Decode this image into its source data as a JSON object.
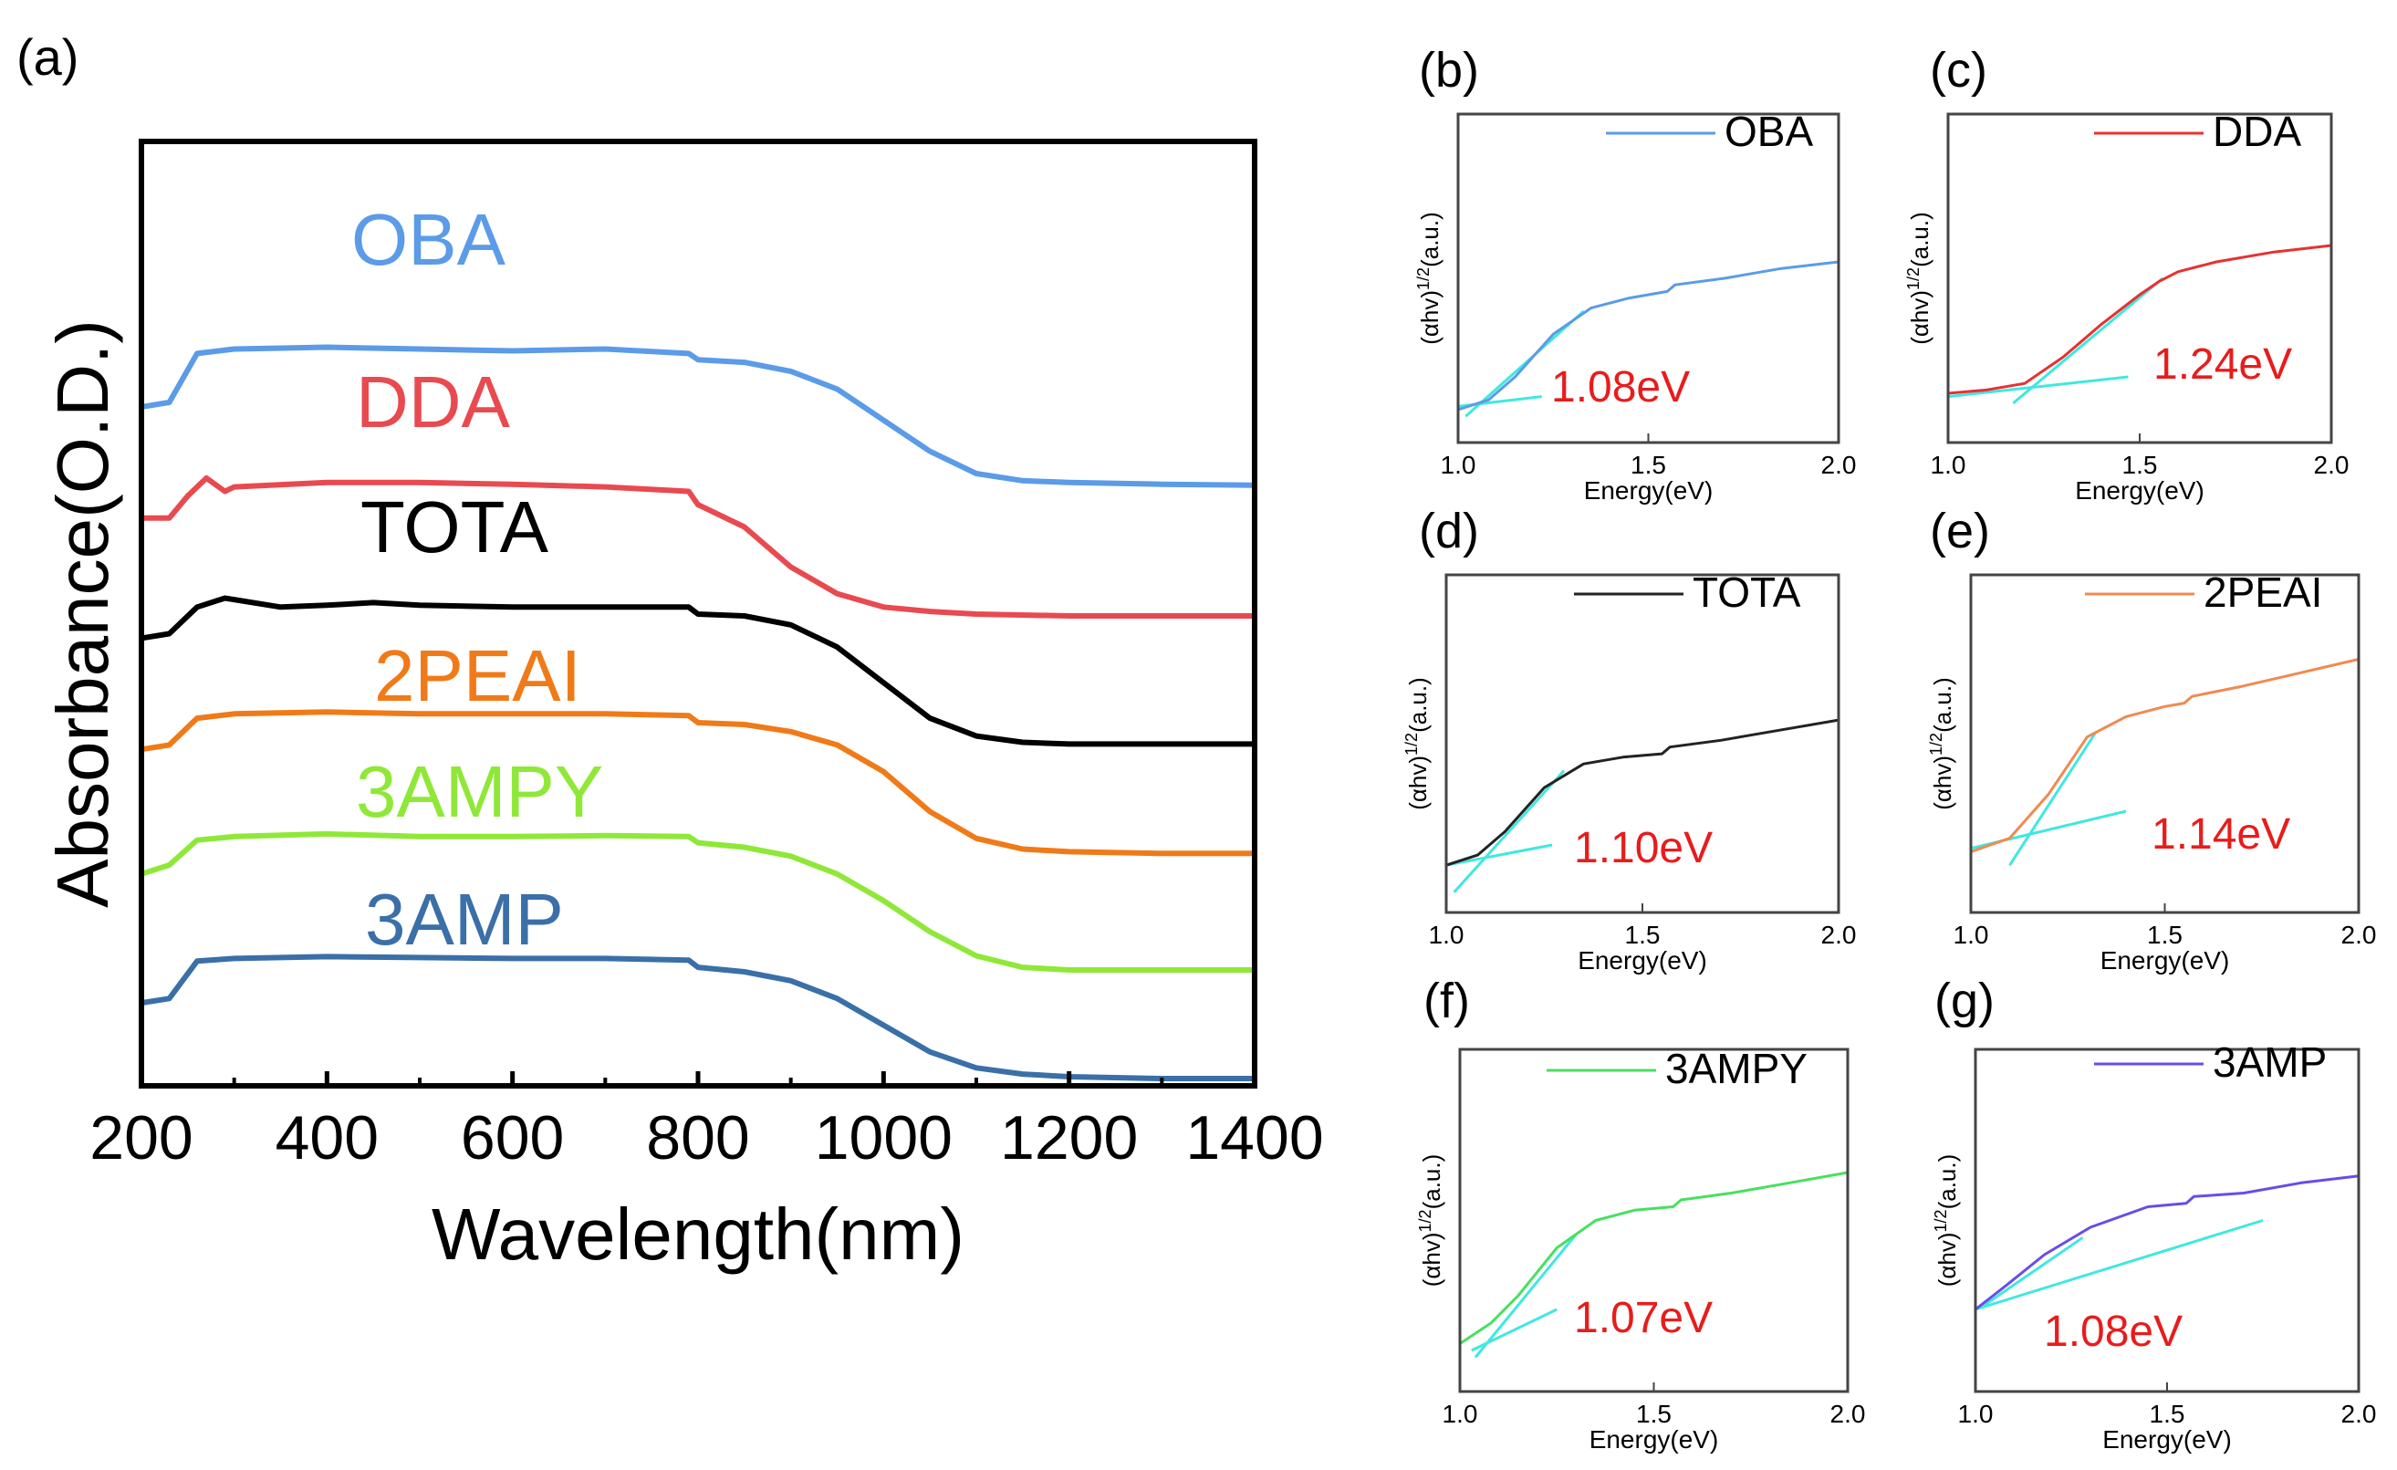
{
  "chart_data": [
    {
      "panel": "(a)",
      "type": "line",
      "xlabel": "Wavelength(nm)",
      "ylabel": "Absorbance(O.D.)",
      "xlim": [
        200,
        1400
      ],
      "xticks": [
        "200",
        "400",
        "600",
        "800",
        "1000",
        "1200",
        "1400"
      ],
      "ylim": [
        0,
        10
      ],
      "series": [
        {
          "name": "OBA",
          "color": "#5b9be8",
          "points": [
            [
              200,
              7.55
            ],
            [
              230,
              7.6
            ],
            [
              260,
              8.15
            ],
            [
              300,
              8.2
            ],
            [
              400,
              8.22
            ],
            [
              500,
              8.2
            ],
            [
              600,
              8.18
            ],
            [
              700,
              8.2
            ],
            [
              790,
              8.15
            ],
            [
              800,
              8.08
            ],
            [
              850,
              8.05
            ],
            [
              900,
              7.95
            ],
            [
              950,
              7.75
            ],
            [
              1000,
              7.4
            ],
            [
              1050,
              7.05
            ],
            [
              1100,
              6.8
            ],
            [
              1150,
              6.72
            ],
            [
              1200,
              6.7
            ],
            [
              1300,
              6.68
            ],
            [
              1400,
              6.67
            ]
          ]
        },
        {
          "name": "DDA",
          "color": "#e84a50",
          "points": [
            [
              200,
              6.3
            ],
            [
              230,
              6.3
            ],
            [
              250,
              6.55
            ],
            [
              270,
              6.75
            ],
            [
              290,
              6.6
            ],
            [
              300,
              6.65
            ],
            [
              400,
              6.7
            ],
            [
              500,
              6.7
            ],
            [
              600,
              6.68
            ],
            [
              700,
              6.65
            ],
            [
              790,
              6.6
            ],
            [
              800,
              6.45
            ],
            [
              850,
              6.2
            ],
            [
              900,
              5.75
            ],
            [
              950,
              5.45
            ],
            [
              1000,
              5.3
            ],
            [
              1050,
              5.25
            ],
            [
              1100,
              5.22
            ],
            [
              1200,
              5.2
            ],
            [
              1300,
              5.2
            ],
            [
              1400,
              5.2
            ]
          ]
        },
        {
          "name": "TOTA",
          "color": "#000000",
          "points": [
            [
              200,
              4.95
            ],
            [
              230,
              5.0
            ],
            [
              260,
              5.3
            ],
            [
              290,
              5.4
            ],
            [
              350,
              5.3
            ],
            [
              400,
              5.32
            ],
            [
              450,
              5.35
            ],
            [
              500,
              5.32
            ],
            [
              600,
              5.3
            ],
            [
              700,
              5.3
            ],
            [
              790,
              5.3
            ],
            [
              800,
              5.22
            ],
            [
              850,
              5.2
            ],
            [
              900,
              5.1
            ],
            [
              950,
              4.85
            ],
            [
              1000,
              4.45
            ],
            [
              1050,
              4.05
            ],
            [
              1100,
              3.85
            ],
            [
              1150,
              3.78
            ],
            [
              1200,
              3.76
            ],
            [
              1300,
              3.76
            ],
            [
              1400,
              3.76
            ]
          ]
        },
        {
          "name": "2PEAI",
          "color": "#f07a18",
          "points": [
            [
              200,
              3.7
            ],
            [
              230,
              3.75
            ],
            [
              260,
              4.05
            ],
            [
              300,
              4.1
            ],
            [
              400,
              4.12
            ],
            [
              500,
              4.1
            ],
            [
              600,
              4.1
            ],
            [
              700,
              4.1
            ],
            [
              790,
              4.08
            ],
            [
              800,
              4.0
            ],
            [
              850,
              3.98
            ],
            [
              900,
              3.9
            ],
            [
              950,
              3.75
            ],
            [
              1000,
              3.45
            ],
            [
              1050,
              3.0
            ],
            [
              1100,
              2.7
            ],
            [
              1150,
              2.58
            ],
            [
              1200,
              2.55
            ],
            [
              1300,
              2.53
            ],
            [
              1400,
              2.53
            ]
          ]
        },
        {
          "name": "3AMPY",
          "color": "#8fe838",
          "points": [
            [
              200,
              2.3
            ],
            [
              230,
              2.4
            ],
            [
              260,
              2.68
            ],
            [
              300,
              2.72
            ],
            [
              400,
              2.75
            ],
            [
              500,
              2.72
            ],
            [
              600,
              2.72
            ],
            [
              700,
              2.73
            ],
            [
              790,
              2.72
            ],
            [
              800,
              2.65
            ],
            [
              850,
              2.6
            ],
            [
              900,
              2.5
            ],
            [
              950,
              2.3
            ],
            [
              1000,
              2.0
            ],
            [
              1050,
              1.65
            ],
            [
              1100,
              1.38
            ],
            [
              1150,
              1.25
            ],
            [
              1200,
              1.22
            ],
            [
              1300,
              1.22
            ],
            [
              1400,
              1.22
            ]
          ]
        },
        {
          "name": "3AMP",
          "color": "#3a6fa8",
          "points": [
            [
              200,
              0.85
            ],
            [
              230,
              0.9
            ],
            [
              260,
              1.32
            ],
            [
              300,
              1.35
            ],
            [
              400,
              1.37
            ],
            [
              500,
              1.36
            ],
            [
              600,
              1.35
            ],
            [
              700,
              1.35
            ],
            [
              790,
              1.33
            ],
            [
              800,
              1.25
            ],
            [
              850,
              1.2
            ],
            [
              900,
              1.1
            ],
            [
              950,
              0.9
            ],
            [
              1000,
              0.6
            ],
            [
              1050,
              0.3
            ],
            [
              1100,
              0.12
            ],
            [
              1150,
              0.05
            ],
            [
              1200,
              0.02
            ],
            [
              1300,
              0.0
            ],
            [
              1400,
              0.0
            ]
          ]
        }
      ]
    },
    {
      "panel": "(b)",
      "type": "line",
      "name": "OBA",
      "color": "#5b9be8",
      "fit_color": "#3fe8e0",
      "xlabel": "Energy(eV)",
      "ylabel": "(αhv)^1/2(a.u.)",
      "ylabel_base": "(αhv)",
      "ylabel_sup": "1/2",
      "ylabel_tail": "(a.u.)",
      "xlim": [
        1.0,
        2.0
      ],
      "xticks": [
        "1.0",
        "1.5",
        "2.0"
      ],
      "ylim": [
        0,
        1
      ],
      "band_gap": "1.08eV",
      "band_gap_value": 1.08,
      "points": [
        [
          1.0,
          0.1
        ],
        [
          1.08,
          0.13
        ],
        [
          1.15,
          0.2
        ],
        [
          1.25,
          0.33
        ],
        [
          1.35,
          0.41
        ],
        [
          1.45,
          0.44
        ],
        [
          1.55,
          0.46
        ],
        [
          1.57,
          0.48
        ],
        [
          1.7,
          0.5
        ],
        [
          1.85,
          0.53
        ],
        [
          2.0,
          0.55
        ]
      ],
      "fit_lines": [
        [
          [
            1.02,
            0.08
          ],
          [
            1.33,
            0.4
          ]
        ],
        [
          [
            1.0,
            0.11
          ],
          [
            1.22,
            0.14
          ]
        ]
      ]
    },
    {
      "panel": "(c)",
      "type": "line",
      "name": "DDA",
      "color": "#e83030",
      "fit_color": "#3fe8e0",
      "xlabel": "Energy(eV)",
      "ylabel": "(αhv)^1/2(a.u.)",
      "ylabel_base": "(αhv)",
      "ylabel_sup": "1/2",
      "ylabel_tail": "(a.u.)",
      "xlim": [
        1.0,
        2.0
      ],
      "xticks": [
        "1.0",
        "1.5",
        "2.0"
      ],
      "ylim": [
        0,
        1
      ],
      "band_gap": "1.24eV",
      "band_gap_value": 1.24,
      "points": [
        [
          1.0,
          0.15
        ],
        [
          1.1,
          0.16
        ],
        [
          1.2,
          0.18
        ],
        [
          1.3,
          0.26
        ],
        [
          1.4,
          0.36
        ],
        [
          1.5,
          0.45
        ],
        [
          1.55,
          0.49
        ],
        [
          1.6,
          0.52
        ],
        [
          1.7,
          0.55
        ],
        [
          1.85,
          0.58
        ],
        [
          2.0,
          0.6
        ]
      ],
      "fit_lines": [
        [
          [
            1.17,
            0.12
          ],
          [
            1.56,
            0.5
          ]
        ],
        [
          [
            1.0,
            0.14
          ],
          [
            1.47,
            0.2
          ]
        ]
      ]
    },
    {
      "panel": "(d)",
      "type": "line",
      "name": "TOTA",
      "color": "#222222",
      "fit_color": "#3fe8e0",
      "xlabel": "Energy(eV)",
      "ylabel": "(αhv)^1/2(a.u.)",
      "ylabel_base": "(αhv)",
      "ylabel_sup": "1/2",
      "ylabel_tail": "(a.u.)",
      "xlim": [
        1.0,
        2.0
      ],
      "xticks": [
        "1.0",
        "1.5",
        "2.0"
      ],
      "ylim": [
        0,
        1
      ],
      "band_gap": "1.10eV",
      "band_gap_value": 1.1,
      "points": [
        [
          1.0,
          0.14
        ],
        [
          1.08,
          0.17
        ],
        [
          1.15,
          0.24
        ],
        [
          1.25,
          0.37
        ],
        [
          1.35,
          0.44
        ],
        [
          1.45,
          0.46
        ],
        [
          1.55,
          0.47
        ],
        [
          1.57,
          0.49
        ],
        [
          1.7,
          0.51
        ],
        [
          1.85,
          0.54
        ],
        [
          2.0,
          0.57
        ]
      ],
      "fit_lines": [
        [
          [
            1.02,
            0.06
          ],
          [
            1.3,
            0.42
          ]
        ],
        [
          [
            1.0,
            0.14
          ],
          [
            1.27,
            0.2
          ]
        ]
      ]
    },
    {
      "panel": "(e)",
      "type": "line",
      "name": "2PEAI",
      "color": "#f08a50",
      "fit_color": "#3fe8e0",
      "xlabel": "Energy(eV)",
      "ylabel": "(αhv)^1/2(a.u.)",
      "ylabel_base": "(αhv)",
      "ylabel_sup": "1/2",
      "ylabel_tail": "(a.u.)",
      "xlim": [
        1.0,
        2.0
      ],
      "xticks": [
        "1.0",
        "1.5",
        "2.0"
      ],
      "ylim": [
        0,
        1
      ],
      "band_gap": "1.14eV",
      "band_gap_value": 1.14,
      "points": [
        [
          1.0,
          0.18
        ],
        [
          1.1,
          0.22
        ],
        [
          1.2,
          0.35
        ],
        [
          1.3,
          0.52
        ],
        [
          1.4,
          0.58
        ],
        [
          1.5,
          0.61
        ],
        [
          1.55,
          0.62
        ],
        [
          1.57,
          0.64
        ],
        [
          1.7,
          0.67
        ],
        [
          1.85,
          0.71
        ],
        [
          2.0,
          0.75
        ]
      ],
      "fit_lines": [
        [
          [
            1.1,
            0.14
          ],
          [
            1.32,
            0.53
          ]
        ],
        [
          [
            1.0,
            0.19
          ],
          [
            1.4,
            0.3
          ]
        ]
      ]
    },
    {
      "panel": "(f)",
      "type": "line",
      "name": "3AMPY",
      "color": "#48e060",
      "fit_color": "#3fe8e0",
      "xlabel": "Energy(eV)",
      "ylabel": "(αhv)^1/2(a.u.)",
      "ylabel_base": "(αhv)",
      "ylabel_sup": "1/2",
      "ylabel_tail": "(a.u.)",
      "xlim": [
        1.0,
        2.0
      ],
      "xticks": [
        "1.0",
        "1.5",
        "2.0"
      ],
      "ylim": [
        0,
        1
      ],
      "band_gap": "1.07eV",
      "band_gap_value": 1.07,
      "points": [
        [
          1.0,
          0.14
        ],
        [
          1.08,
          0.2
        ],
        [
          1.15,
          0.28
        ],
        [
          1.25,
          0.42
        ],
        [
          1.35,
          0.5
        ],
        [
          1.45,
          0.53
        ],
        [
          1.55,
          0.54
        ],
        [
          1.57,
          0.56
        ],
        [
          1.7,
          0.58
        ],
        [
          1.85,
          0.61
        ],
        [
          2.0,
          0.64
        ]
      ],
      "fit_lines": [
        [
          [
            1.04,
            0.1
          ],
          [
            1.3,
            0.46
          ]
        ],
        [
          [
            1.03,
            0.12
          ],
          [
            1.25,
            0.24
          ]
        ]
      ]
    },
    {
      "panel": "(g)",
      "type": "line",
      "name": "3AMP",
      "color": "#6a4ce8",
      "fit_color": "#3fe8e0",
      "xlabel": "Energy(eV)",
      "ylabel": "(αhv)^1/2(a.u.)",
      "ylabel_base": "(αhv)",
      "ylabel_sup": "1/2",
      "ylabel_tail": "(a.u.)",
      "xlim": [
        1.0,
        2.0
      ],
      "xticks": [
        "1.0",
        "1.5",
        "2.0"
      ],
      "ylim": [
        0,
        1
      ],
      "band_gap": "1.08eV",
      "band_gap_value": 1.08,
      "points": [
        [
          1.0,
          0.24
        ],
        [
          1.08,
          0.31
        ],
        [
          1.18,
          0.4
        ],
        [
          1.3,
          0.48
        ],
        [
          1.45,
          0.54
        ],
        [
          1.55,
          0.55
        ],
        [
          1.57,
          0.57
        ],
        [
          1.7,
          0.58
        ],
        [
          1.85,
          0.61
        ],
        [
          2.0,
          0.63
        ]
      ],
      "fit_lines": [
        [
          [
            1.02,
            0.25
          ],
          [
            1.28,
            0.45
          ]
        ],
        [
          [
            1.0,
            0.24
          ],
          [
            1.75,
            0.5
          ]
        ]
      ]
    }
  ]
}
